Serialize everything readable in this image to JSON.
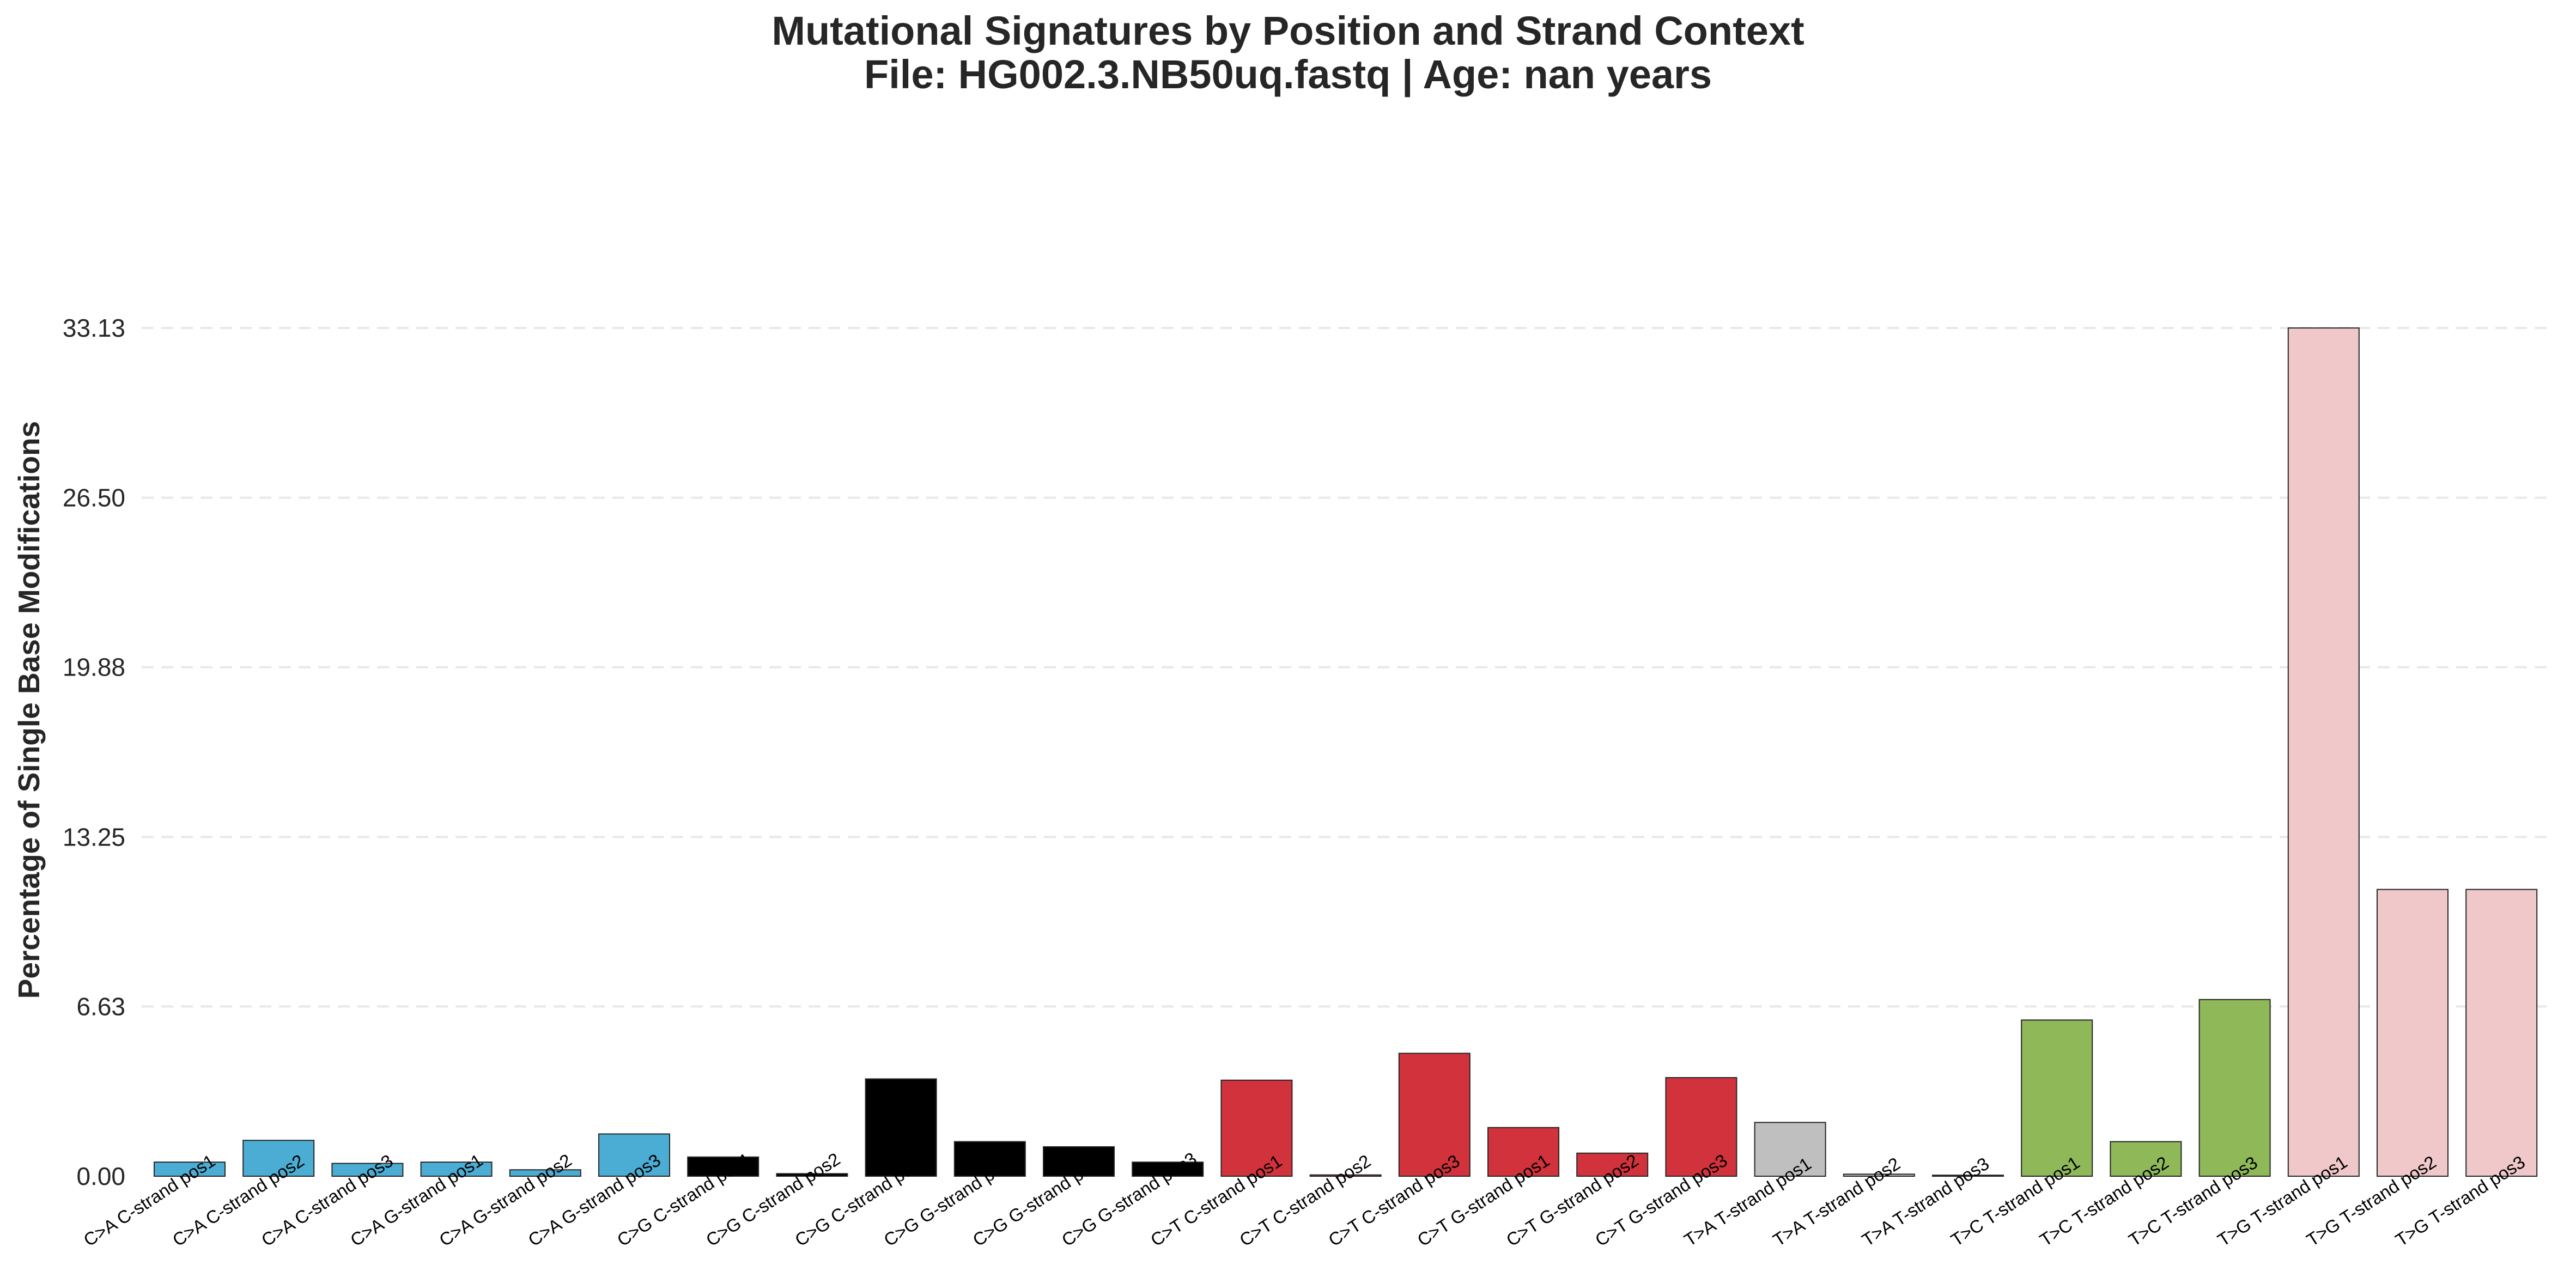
{
  "chart_data": {
    "type": "bar",
    "title": "Mutational Signatures by Position and Strand Context",
    "subtitle": "File: HG002.3.NB50uq.fastq | Age: nan years",
    "xlabel": "",
    "ylabel": "Percentage of Single Base Modifications",
    "ylim": [
      0,
      33.13
    ],
    "yticks": [
      "0.00",
      "6.63",
      "13.25",
      "19.88",
      "26.50",
      "33.13"
    ],
    "ytick_values": [
      0,
      6.63,
      13.25,
      19.88,
      26.5,
      33.13
    ],
    "grid": "y-dashed",
    "categories": [
      "C>A C-strand pos1",
      "C>A C-strand pos2",
      "C>A C-strand pos3",
      "C>A G-strand pos1",
      "C>A G-strand pos2",
      "C>A G-strand pos3",
      "C>G C-strand pos1",
      "C>G C-strand pos2",
      "C>G C-strand pos3",
      "C>G G-strand pos1",
      "C>G G-strand pos2",
      "C>G G-strand pos3",
      "C>T C-strand pos1",
      "C>T C-strand pos2",
      "C>T C-strand pos3",
      "C>T G-strand pos1",
      "C>T G-strand pos2",
      "C>T G-strand pos3",
      "T>A T-strand pos1",
      "T>A T-strand pos2",
      "T>A T-strand pos3",
      "T>C T-strand pos1",
      "T>C T-strand pos2",
      "T>C T-strand pos3",
      "T>G T-strand pos1",
      "T>G T-strand pos2",
      "T>G T-strand pos3"
    ],
    "values": [
      0.55,
      1.4,
      0.5,
      0.55,
      0.25,
      1.65,
      0.75,
      0.1,
      3.8,
      1.35,
      1.15,
      0.55,
      3.75,
      0.05,
      4.8,
      1.9,
      0.9,
      3.85,
      2.1,
      0.08,
      0.04,
      6.1,
      1.35,
      6.9,
      33.13,
      11.2,
      11.2
    ],
    "colors": [
      "#4badd4",
      "#4badd4",
      "#4badd4",
      "#4badd4",
      "#4badd4",
      "#4badd4",
      "#000000",
      "#000000",
      "#000000",
      "#000000",
      "#000000",
      "#000000",
      "#d1323c",
      "#d1323c",
      "#d1323c",
      "#d1323c",
      "#d1323c",
      "#d1323c",
      "#bfbfbf",
      "#bfbfbf",
      "#bfbfbf",
      "#8fb858",
      "#8fb858",
      "#8fb858",
      "#f0c8ca",
      "#f0c8ca",
      "#f0c8ca"
    ],
    "bar_edge_color": "#262626"
  }
}
